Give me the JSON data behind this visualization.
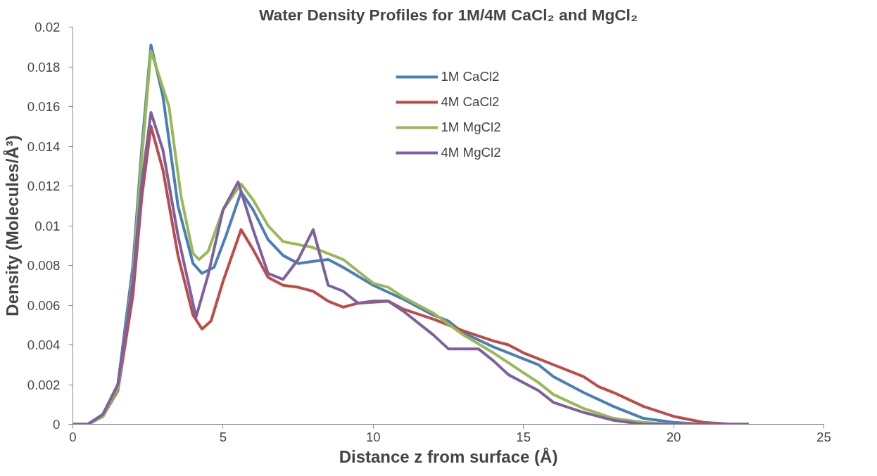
{
  "chart_data": {
    "type": "line",
    "title": "Water Density Profiles for 1M/4M CaCl₂ and MgCl₂",
    "xlabel": "Distance z from surface (Å)",
    "ylabel": "Density (Molecules/Å³)",
    "xlim": [
      0,
      25
    ],
    "xticks": [
      0,
      5,
      10,
      15,
      20,
      25
    ],
    "ylim": [
      0,
      0.02
    ],
    "yticks": [
      0,
      0.002,
      0.004,
      0.006,
      0.008,
      0.01,
      0.012,
      0.014,
      0.016,
      0.018,
      0.02
    ],
    "grid": false,
    "legend": "top center",
    "marker": "none",
    "line_style": "solid",
    "series": [
      {
        "name": "1M CaCl2",
        "color": "#4a7ebb",
        "x": [
          0,
          0.5,
          1,
          1.5,
          2,
          2.3,
          2.6,
          3,
          3.5,
          4,
          4.3,
          4.7,
          5.1,
          5.6,
          6,
          6.5,
          7,
          7.5,
          8,
          8.5,
          9,
          10,
          11,
          12,
          12.5,
          13,
          14,
          15,
          15.5,
          16,
          17,
          18,
          19,
          20,
          21,
          22.5
        ],
        "values": [
          0,
          0,
          0.0005,
          0.002,
          0.008,
          0.014,
          0.0191,
          0.0165,
          0.011,
          0.0081,
          0.0076,
          0.0079,
          0.0095,
          0.0117,
          0.0108,
          0.0093,
          0.0085,
          0.0081,
          0.0082,
          0.0083,
          0.0079,
          0.007,
          0.0063,
          0.0055,
          0.0052,
          0.0046,
          0.0039,
          0.0033,
          0.003,
          0.0024,
          0.0016,
          0.0009,
          0.0003,
          0.0001,
          0,
          0
        ]
      },
      {
        "name": "4M CaCl2",
        "color": "#be4b48",
        "x": [
          0,
          0.5,
          1,
          1.5,
          2,
          2.3,
          2.6,
          3,
          3.5,
          4,
          4.3,
          4.6,
          5,
          5.6,
          6,
          6.5,
          7,
          7.5,
          8,
          8.5,
          9,
          9.5,
          10.5,
          11,
          12,
          13,
          14,
          14.5,
          15,
          16,
          17,
          17.5,
          18,
          19,
          20,
          21,
          22,
          22.5
        ],
        "values": [
          0,
          0,
          0.0004,
          0.0017,
          0.0065,
          0.0115,
          0.015,
          0.0128,
          0.0085,
          0.0055,
          0.0048,
          0.0052,
          0.0072,
          0.0098,
          0.0088,
          0.0074,
          0.007,
          0.0069,
          0.0067,
          0.0062,
          0.0059,
          0.0061,
          0.0062,
          0.0058,
          0.0053,
          0.0047,
          0.0042,
          0.004,
          0.0036,
          0.003,
          0.0024,
          0.0019,
          0.0016,
          0.0009,
          0.0004,
          0.0001,
          0,
          0
        ]
      },
      {
        "name": "1M MgCl2",
        "color": "#98b954",
        "x": [
          0,
          0.5,
          1,
          1.5,
          2,
          2.3,
          2.6,
          3.2,
          3.6,
          4,
          4.2,
          4.5,
          5,
          5.6,
          6,
          6.5,
          7,
          8,
          9,
          10,
          10.5,
          11,
          12,
          13,
          14,
          15,
          15.5,
          16,
          17,
          18,
          19,
          20,
          22.5
        ],
        "values": [
          0,
          0,
          0.0004,
          0.0018,
          0.0075,
          0.0135,
          0.0188,
          0.016,
          0.0115,
          0.0086,
          0.0083,
          0.0087,
          0.0108,
          0.0121,
          0.0113,
          0.01,
          0.0092,
          0.0089,
          0.0083,
          0.0071,
          0.0069,
          0.0064,
          0.0056,
          0.0045,
          0.0036,
          0.0026,
          0.0021,
          0.0015,
          0.0008,
          0.0003,
          0.0001,
          0,
          0
        ]
      },
      {
        "name": "4M MgCl2",
        "color": "#7d60a0",
        "x": [
          0,
          0.5,
          1,
          1.5,
          2,
          2.3,
          2.6,
          3,
          3.5,
          4.1,
          4.5,
          5,
          5.5,
          6,
          6.5,
          7,
          7.5,
          8,
          8.5,
          9,
          9.5,
          10,
          10.5,
          11,
          12,
          12.5,
          13.5,
          14,
          14.5,
          15,
          15.5,
          16,
          17,
          18,
          19,
          20,
          22.5
        ],
        "values": [
          0,
          0,
          0.0005,
          0.002,
          0.0072,
          0.0122,
          0.0157,
          0.0138,
          0.0095,
          0.0054,
          0.0075,
          0.0108,
          0.0122,
          0.0098,
          0.0076,
          0.0073,
          0.0083,
          0.0098,
          0.007,
          0.0067,
          0.0061,
          0.0062,
          0.0062,
          0.0057,
          0.0045,
          0.0038,
          0.0038,
          0.0032,
          0.0025,
          0.0021,
          0.0017,
          0.0011,
          0.0006,
          0.0002,
          0,
          0,
          0
        ]
      }
    ]
  }
}
